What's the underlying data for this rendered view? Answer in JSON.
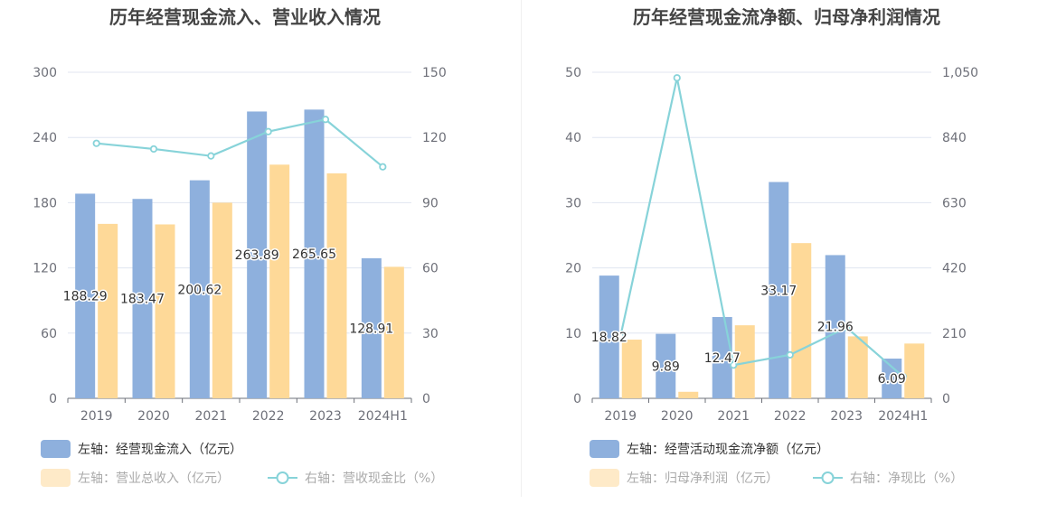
{
  "colors": {
    "primary_bar": "#8eb0dd",
    "secondary_bar": "#fed998",
    "line": "#87d3d9",
    "grid": "#e0e6f1",
    "axis": "#6e7079",
    "legend_dim_box": "#feeac8"
  },
  "chart_data": [
    {
      "type": "bar",
      "title": "历年经营现金流入、营业收入情况",
      "categories": [
        "2019",
        "2020",
        "2021",
        "2022",
        "2023",
        "2024H1"
      ],
      "y_left": {
        "ylim": [
          0,
          300
        ],
        "ticks": [
          "0",
          "60",
          "120",
          "180",
          "240",
          "300"
        ]
      },
      "y_right": {
        "ylim": [
          0,
          150
        ],
        "ticks": [
          "0",
          "30",
          "60",
          "90",
          "120",
          "150"
        ]
      },
      "series": [
        {
          "name": "左轴：经营现金流入（亿元）",
          "kind": "bar",
          "axis": "left",
          "values": [
            188.29,
            183.47,
            200.62,
            263.89,
            265.65,
            128.91
          ],
          "labels": [
            "188.29",
            "183.47",
            "200.62",
            "263.89",
            "265.65",
            "128.91"
          ]
        },
        {
          "name": "左轴：营业总收入（亿元）",
          "kind": "bar",
          "axis": "left",
          "values": [
            160.5,
            160.0,
            180.0,
            215.0,
            207.0,
            121.0
          ]
        },
        {
          "name": "右轴：营收现金比（%）",
          "kind": "line",
          "axis": "right",
          "values": [
            117.3,
            114.7,
            111.5,
            122.7,
            128.3,
            106.5
          ]
        }
      ],
      "grid": true,
      "legend_placement": "bottom-left"
    },
    {
      "type": "bar",
      "title": "历年经营现金流净额、归母净利润情况",
      "categories": [
        "2019",
        "2020",
        "2021",
        "2022",
        "2023",
        "2024H1"
      ],
      "y_left": {
        "ylim": [
          0,
          50
        ],
        "ticks": [
          "0",
          "10",
          "20",
          "30",
          "40",
          "50"
        ]
      },
      "y_right": {
        "ylim": [
          0,
          1050
        ],
        "ticks": [
          "0",
          "210",
          "420",
          "630",
          "840",
          "1,050"
        ]
      },
      "series": [
        {
          "name": "左轴：经营活动现金流净额（亿元）",
          "kind": "bar",
          "axis": "left",
          "values": [
            18.82,
            9.89,
            12.47,
            33.17,
            21.96,
            6.09
          ],
          "labels": [
            "18.82",
            "9.89",
            "12.47",
            "33.17",
            "21.96",
            "6.09"
          ]
        },
        {
          "name": "左轴：归母净利润（亿元）",
          "kind": "bar",
          "axis": "left",
          "values": [
            9.0,
            1.0,
            11.2,
            23.8,
            9.5,
            8.4
          ]
        },
        {
          "name": "右轴：净现比（%）",
          "kind": "line",
          "axis": "right",
          "values": [
            200,
            1032,
            107,
            140,
            228,
            70
          ]
        }
      ],
      "grid": true,
      "legend_placement": "bottom-left"
    }
  ]
}
